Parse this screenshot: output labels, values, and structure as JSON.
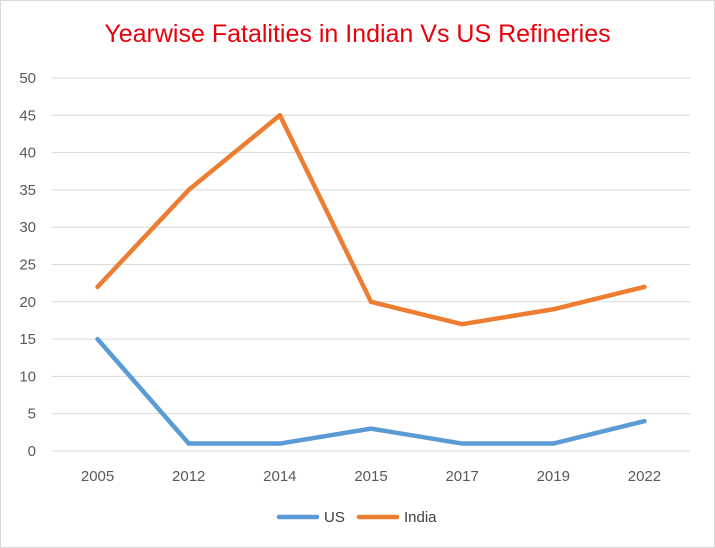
{
  "chart_data": {
    "type": "line",
    "title": "Yearwise Fatalities in Indian Vs US Refineries",
    "categories": [
      "2005",
      "2012",
      "2014",
      "2015",
      "2017",
      "2019",
      "2022"
    ],
    "series": [
      {
        "name": "US",
        "values": [
          15,
          1,
          1,
          3,
          1,
          1,
          4
        ],
        "color": "#5b9bd5"
      },
      {
        "name": "India",
        "values": [
          22,
          35,
          45,
          20,
          17,
          19,
          22
        ],
        "color": "#ed7d31"
      }
    ],
    "yticks": [
      "0",
      "5",
      "10",
      "15",
      "20",
      "25",
      "30",
      "35",
      "40",
      "45",
      "50"
    ],
    "ylim": [
      0,
      50
    ],
    "grid": true,
    "legend": "bottom",
    "title_color": "#e8000b",
    "xlabel": "",
    "ylabel": ""
  }
}
